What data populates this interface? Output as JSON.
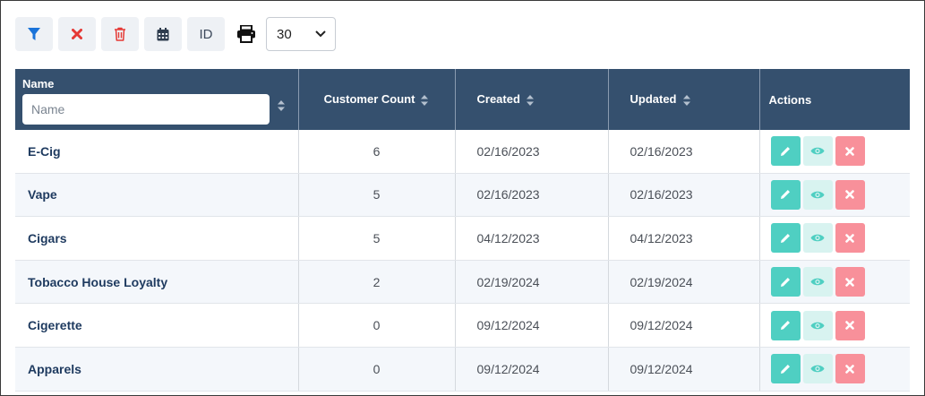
{
  "toolbar": {
    "id_label": "ID",
    "per_page_selected": "30",
    "icons": [
      "filter-icon",
      "clear-icon",
      "trash-icon",
      "calendar-icon",
      "print-icon"
    ]
  },
  "colors": {
    "header_bg": "#35506e",
    "edit": "#4fcfc2",
    "view": "#d8f3f0",
    "delete": "#f8909a",
    "filter_icon": "#1a73d9",
    "clear_icon": "#e53935"
  },
  "table": {
    "columns": {
      "name": "Name",
      "name_placeholder": "Name",
      "customer_count": "Customer Count",
      "created": "Created",
      "updated": "Updated",
      "actions": "Actions"
    },
    "rows": [
      {
        "name": "E-Cig",
        "count": "6",
        "created": "02/16/2023",
        "updated": "02/16/2023"
      },
      {
        "name": "Vape",
        "count": "5",
        "created": "02/16/2023",
        "updated": "02/16/2023"
      },
      {
        "name": "Cigars",
        "count": "5",
        "created": "04/12/2023",
        "updated": "04/12/2023"
      },
      {
        "name": "Tobacco House Loyalty",
        "count": "2",
        "created": "02/19/2024",
        "updated": "02/19/2024"
      },
      {
        "name": "Cigerette",
        "count": "0",
        "created": "09/12/2024",
        "updated": "09/12/2024"
      },
      {
        "name": "Apparels",
        "count": "0",
        "created": "09/12/2024",
        "updated": "09/12/2024"
      }
    ]
  }
}
